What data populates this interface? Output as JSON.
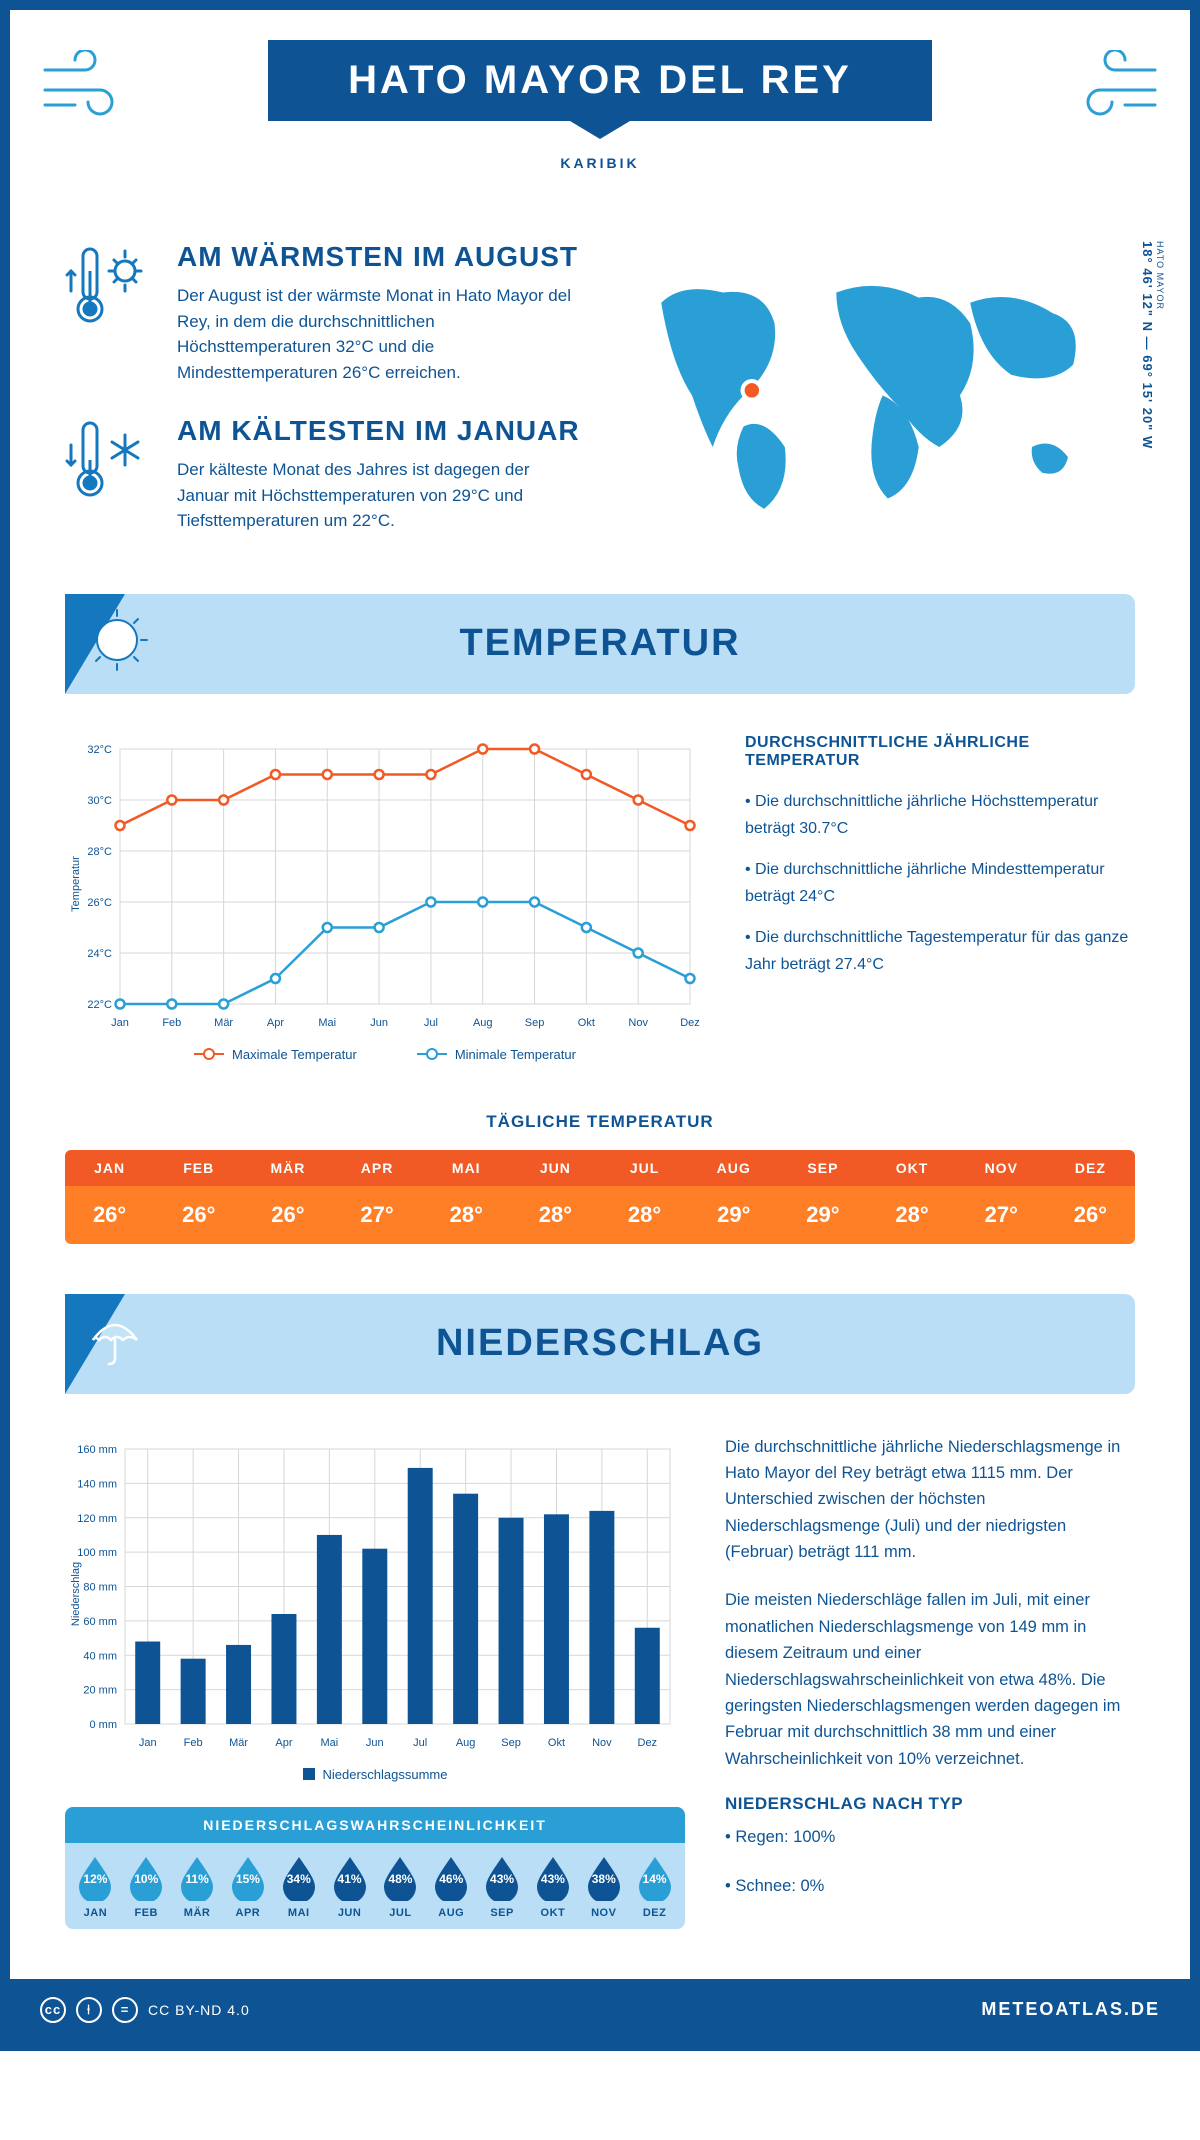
{
  "header": {
    "title": "HATO MAYOR DEL REY",
    "subtitle": "KARIBIK"
  },
  "coords": {
    "label_small": "HATO MAYOR",
    "label": "18° 46' 12\" N — 69° 15' 20\" W"
  },
  "warm": {
    "title": "AM WÄRMSTEN IM AUGUST",
    "text": "Der August ist der wärmste Monat in Hato Mayor del Rey, in dem die durchschnittlichen Höchsttemperaturen 32°C und die Mindesttemperaturen 26°C erreichen."
  },
  "cold": {
    "title": "AM KÄLTESTEN IM JANUAR",
    "text": "Der kälteste Monat des Jahres ist dagegen der Januar mit Höchsttemperaturen von 29°C und Tiefsttemperaturen um 22°C."
  },
  "temp_section": {
    "title": "TEMPERATUR"
  },
  "months": [
    "Jan",
    "Feb",
    "Mär",
    "Apr",
    "Mai",
    "Jun",
    "Jul",
    "Aug",
    "Sep",
    "Okt",
    "Nov",
    "Dez"
  ],
  "months_uc": [
    "JAN",
    "FEB",
    "MÄR",
    "APR",
    "MAI",
    "JUN",
    "JUL",
    "AUG",
    "SEP",
    "OKT",
    "NOV",
    "DEZ"
  ],
  "temp_chart": {
    "ylabel": "Temperatur",
    "ylim": [
      22,
      32
    ],
    "ytick_step": 2,
    "max_color": "#f15a24",
    "min_color": "#2a9fd6",
    "grid_color": "#d7d7d7",
    "max": [
      29,
      30,
      30,
      31,
      31,
      31,
      31,
      32,
      32,
      31,
      30,
      29
    ],
    "min": [
      22,
      22,
      22,
      23,
      25,
      25,
      26,
      26,
      26,
      25,
      24,
      23
    ],
    "legend_max": "Maximale Temperatur",
    "legend_min": "Minimale Temperatur"
  },
  "temp_info": {
    "heading": "DURCHSCHNITTLICHE JÄHRLICHE TEMPERATUR",
    "b1": "• Die durchschnittliche jährliche Höchsttemperatur beträgt 30.7°C",
    "b2": "• Die durchschnittliche jährliche Mindesttemperatur beträgt 24°C",
    "b3": "• Die durchschnittliche Tagestemperatur für das ganze Jahr beträgt 27.4°C"
  },
  "daily": {
    "title": "TÄGLICHE TEMPERATUR",
    "header_bg": "#f15a24",
    "value_bg": "#ff7f27",
    "values": [
      "26°",
      "26°",
      "26°",
      "27°",
      "28°",
      "28°",
      "28°",
      "29°",
      "29°",
      "28°",
      "27°",
      "26°"
    ]
  },
  "precip_section": {
    "title": "NIEDERSCHLAG"
  },
  "precip_chart": {
    "ylabel": "Niederschlag",
    "ylim": [
      0,
      160
    ],
    "ytick_step": 20,
    "bar_color": "#0e5494",
    "grid_color": "#d7d7d7",
    "values": [
      48,
      38,
      46,
      64,
      110,
      102,
      149,
      134,
      120,
      122,
      124,
      56
    ],
    "legend": "Niederschlagssumme"
  },
  "precip_text": {
    "p1": "Die durchschnittliche jährliche Niederschlagsmenge in Hato Mayor del Rey beträgt etwa 1115 mm. Der Unterschied zwischen der höchsten Niederschlagsmenge (Juli) und der niedrigsten (Februar) beträgt 111 mm.",
    "p2": "Die meisten Niederschläge fallen im Juli, mit einer monatlichen Niederschlagsmenge von 149 mm in diesem Zeitraum und einer Niederschlagswahrscheinlichkeit von etwa 48%. Die geringsten Niederschlagsmengen werden dagegen im Februar mit durchschnittlich 38 mm und einer Wahrscheinlichkeit von 10% verzeichnet.",
    "h": "NIEDERSCHLAG NACH TYP",
    "b1": "• Regen: 100%",
    "b2": "• Schnee: 0%"
  },
  "prob": {
    "title": "NIEDERSCHLAGSWAHRSCHEINLICHKEIT",
    "light": "#2a9fd6",
    "dark": "#0e5494",
    "threshold": 30,
    "values": [
      12,
      10,
      11,
      15,
      34,
      41,
      48,
      46,
      43,
      43,
      38,
      14
    ]
  },
  "footer": {
    "cc": "CC BY-ND 4.0",
    "site": "METEOATLAS.DE"
  }
}
